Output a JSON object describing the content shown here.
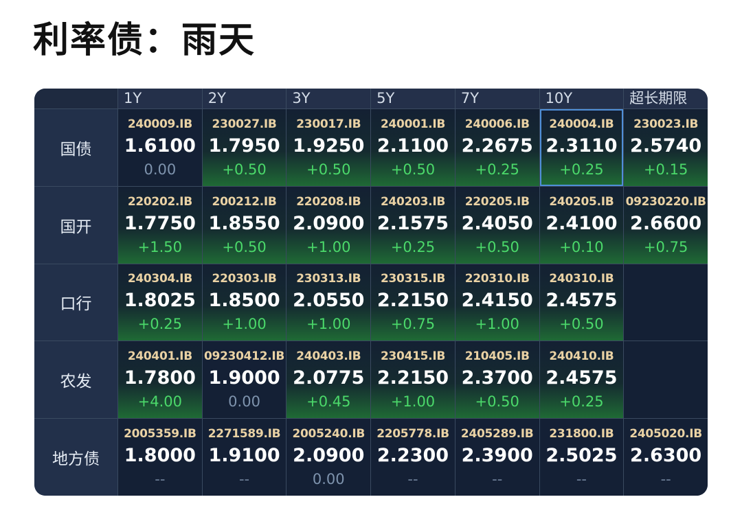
{
  "title": "利率债：雨天",
  "colors": {
    "up": "#4bd96a",
    "flat": "#7e93ad",
    "code": "#ead2a4",
    "panel": "#1a2538",
    "selected_border": "#4f8fd8"
  },
  "columns": [
    "1Y",
    "2Y",
    "3Y",
    "5Y",
    "7Y",
    "10Y",
    "超长期限"
  ],
  "rows": [
    {
      "name": "国债",
      "cells": [
        {
          "code": "240009.IB",
          "rate": "1.6100",
          "change": "0.00",
          "status": "flat"
        },
        {
          "code": "230027.IB",
          "rate": "1.7950",
          "change": "+0.50",
          "status": "up"
        },
        {
          "code": "230017.IB",
          "rate": "1.9250",
          "change": "+0.50",
          "status": "up"
        },
        {
          "code": "240001.IB",
          "rate": "2.1100",
          "change": "+0.50",
          "status": "up"
        },
        {
          "code": "240006.IB",
          "rate": "2.2675",
          "change": "+0.25",
          "status": "up"
        },
        {
          "code": "240004.IB",
          "rate": "2.3110",
          "change": "+0.25",
          "status": "up",
          "selected": true
        },
        {
          "code": "230023.IB",
          "rate": "2.5740",
          "change": "+0.15",
          "status": "up"
        }
      ]
    },
    {
      "name": "国开",
      "cells": [
        {
          "code": "220202.IB",
          "rate": "1.7750",
          "change": "+1.50",
          "status": "up"
        },
        {
          "code": "200212.IB",
          "rate": "1.8550",
          "change": "+0.50",
          "status": "up"
        },
        {
          "code": "220208.IB",
          "rate": "2.0900",
          "change": "+1.00",
          "status": "up"
        },
        {
          "code": "240203.IB",
          "rate": "2.1575",
          "change": "+0.25",
          "status": "up"
        },
        {
          "code": "220205.IB",
          "rate": "2.4050",
          "change": "+0.50",
          "status": "up"
        },
        {
          "code": "240205.IB",
          "rate": "2.4100",
          "change": "+0.10",
          "status": "up"
        },
        {
          "code": "09230220.IB",
          "rate": "2.6600",
          "change": "+0.75",
          "status": "up"
        }
      ]
    },
    {
      "name": "口行",
      "cells": [
        {
          "code": "240304.IB",
          "rate": "1.8025",
          "change": "+0.25",
          "status": "up"
        },
        {
          "code": "220303.IB",
          "rate": "1.8500",
          "change": "+1.00",
          "status": "up"
        },
        {
          "code": "230313.IB",
          "rate": "2.0550",
          "change": "+1.00",
          "status": "up"
        },
        {
          "code": "230315.IB",
          "rate": "2.2150",
          "change": "+0.75",
          "status": "up"
        },
        {
          "code": "220310.IB",
          "rate": "2.4150",
          "change": "+1.00",
          "status": "up"
        },
        {
          "code": "240310.IB",
          "rate": "2.4575",
          "change": "+0.50",
          "status": "up"
        },
        null
      ]
    },
    {
      "name": "农发",
      "cells": [
        {
          "code": "240401.IB",
          "rate": "1.7800",
          "change": "+4.00",
          "status": "up"
        },
        {
          "code": "09230412.IB",
          "rate": "1.9000",
          "change": "0.00",
          "status": "flat"
        },
        {
          "code": "240403.IB",
          "rate": "2.0775",
          "change": "+0.45",
          "status": "up"
        },
        {
          "code": "230415.IB",
          "rate": "2.2150",
          "change": "+1.00",
          "status": "up"
        },
        {
          "code": "210405.IB",
          "rate": "2.3700",
          "change": "+0.50",
          "status": "up"
        },
        {
          "code": "240410.IB",
          "rate": "2.4575",
          "change": "+0.25",
          "status": "up"
        },
        null
      ]
    },
    {
      "name": "地方债",
      "cells": [
        {
          "code": "2005359.IB",
          "rate": "1.8000",
          "change": "--",
          "status": "none"
        },
        {
          "code": "2271589.IB",
          "rate": "1.9100",
          "change": "--",
          "status": "none"
        },
        {
          "code": "2005240.IB",
          "rate": "2.0900",
          "change": "0.00",
          "status": "flat"
        },
        {
          "code": "2205778.IB",
          "rate": "2.2300",
          "change": "--",
          "status": "none"
        },
        {
          "code": "2405289.IB",
          "rate": "2.3900",
          "change": "--",
          "status": "none"
        },
        {
          "code": "231800.IB",
          "rate": "2.5025",
          "change": "--",
          "status": "none"
        },
        {
          "code": "2405020.IB",
          "rate": "2.6300",
          "change": "--",
          "status": "none"
        }
      ]
    }
  ]
}
